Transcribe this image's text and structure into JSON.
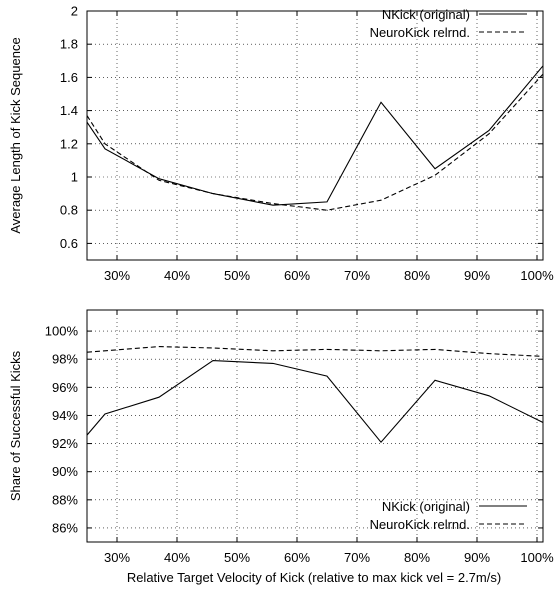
{
  "chart_data": [
    {
      "type": "line",
      "title": "",
      "xlabel": "",
      "ylabel": "Average Length of Kick Sequence",
      "xlim": [
        25,
        101
      ],
      "ylim": [
        0.5,
        2.0
      ],
      "xticks": [
        30,
        40,
        50,
        60,
        70,
        80,
        90,
        100
      ],
      "xtick_labels": [
        "30%",
        "40%",
        "50%",
        "60%",
        "70%",
        "80%",
        "90%",
        "100%"
      ],
      "yticks": [
        0.6,
        0.8,
        1.0,
        1.2,
        1.4,
        1.6,
        1.8,
        2.0
      ],
      "ytick_labels": [
        "0.6",
        "0.8",
        "1",
        "1.2",
        "1.4",
        "1.6",
        "1.8",
        "2"
      ],
      "grid": true,
      "legend_position": "top-right",
      "series": [
        {
          "name": "NKick (original)",
          "style": "solid",
          "x": [
            25,
            28,
            37,
            46,
            56,
            65,
            74,
            83,
            92,
            101
          ],
          "y": [
            1.33,
            1.17,
            0.99,
            0.9,
            0.83,
            0.85,
            1.45,
            1.05,
            1.28,
            1.67
          ]
        },
        {
          "name": "NeuroKick relrnd.",
          "style": "dashed",
          "x": [
            25,
            28,
            37,
            46,
            56,
            65,
            74,
            83,
            92,
            101
          ],
          "y": [
            1.37,
            1.2,
            0.98,
            0.9,
            0.84,
            0.8,
            0.86,
            1.01,
            1.26,
            1.62
          ]
        }
      ]
    },
    {
      "type": "line",
      "title": "",
      "xlabel": "Relative Target Velocity of Kick (relative to max kick vel = 2.7m/s)",
      "ylabel": "Share of Successful Kicks",
      "xlim": [
        25,
        101
      ],
      "ylim": [
        85,
        101.5
      ],
      "xticks": [
        30,
        40,
        50,
        60,
        70,
        80,
        90,
        100
      ],
      "xtick_labels": [
        "30%",
        "40%",
        "50%",
        "60%",
        "70%",
        "80%",
        "90%",
        "100%"
      ],
      "yticks": [
        86,
        88,
        90,
        92,
        94,
        96,
        98,
        100
      ],
      "ytick_labels": [
        "86%",
        "88%",
        "90%",
        "92%",
        "94%",
        "96%",
        "98%",
        "100%"
      ],
      "grid": true,
      "legend_position": "bottom-right",
      "series": [
        {
          "name": "NKick (original)",
          "style": "solid",
          "x": [
            25,
            28,
            37,
            46,
            56,
            65,
            74,
            83,
            92,
            101
          ],
          "y": [
            92.6,
            94.1,
            95.3,
            97.9,
            97.7,
            96.8,
            92.1,
            96.5,
            95.4,
            93.5
          ]
        },
        {
          "name": "NeuroKick relrnd.",
          "style": "dashed",
          "x": [
            25,
            28,
            37,
            46,
            56,
            65,
            74,
            83,
            92,
            101
          ],
          "y": [
            98.5,
            98.6,
            98.9,
            98.8,
            98.6,
            98.7,
            98.6,
            98.7,
            98.4,
            98.2
          ]
        }
      ]
    }
  ]
}
